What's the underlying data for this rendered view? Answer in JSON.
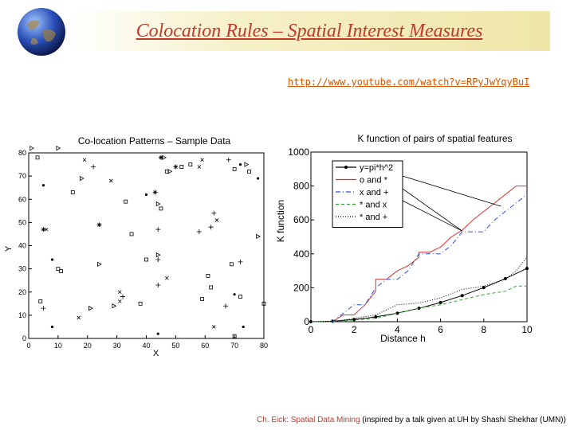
{
  "slide": {
    "title": "Colocation Rules – Spatial Interest Measures",
    "url": "http://www.youtube.com/watch?v=RPyJwYqyBuI",
    "footer_highlight": "Ch. Eick: Spatial Data Mining",
    "footer_rest": " (inspired by a talk given at UH by Shashi Shekhar (UMN))",
    "colors": {
      "title": "#c0392b",
      "url": "#d35400",
      "band": "#efe6a8"
    },
    "icon": "globe-icon"
  },
  "chart_data": [
    {
      "type": "scatter",
      "title": "Co-location Patterns – Sample Data",
      "xlabel": "X",
      "ylabel": "Y",
      "xlim": [
        0,
        80
      ],
      "ylim": [
        0,
        80
      ],
      "xticks": [
        0,
        10,
        20,
        30,
        40,
        50,
        60,
        70,
        80
      ],
      "yticks": [
        0,
        10,
        20,
        30,
        40,
        50,
        60,
        70,
        80
      ],
      "points": [
        {
          "x": 1,
          "y": 82,
          "m": "tri"
        },
        {
          "x": 3,
          "y": 78,
          "m": "sq"
        },
        {
          "x": 10,
          "y": 82,
          "m": "tri"
        },
        {
          "x": 19,
          "y": 77,
          "m": "x"
        },
        {
          "x": 22,
          "y": 74,
          "m": "plus"
        },
        {
          "x": 18,
          "y": 69,
          "m": "tri"
        },
        {
          "x": 28,
          "y": 68,
          "m": "x"
        },
        {
          "x": 5,
          "y": 66,
          "m": "dot"
        },
        {
          "x": 15,
          "y": 63,
          "m": "sq"
        },
        {
          "x": 33,
          "y": 59,
          "m": "sq"
        },
        {
          "x": 40,
          "y": 62,
          "m": "dot"
        },
        {
          "x": 43,
          "y": 63,
          "m": "star"
        },
        {
          "x": 44,
          "y": 58,
          "m": "tri"
        },
        {
          "x": 45,
          "y": 56,
          "m": "sq"
        },
        {
          "x": 45,
          "y": 78,
          "m": "star"
        },
        {
          "x": 46,
          "y": 78,
          "m": "tri"
        },
        {
          "x": 47,
          "y": 72,
          "m": "sq"
        },
        {
          "x": 48,
          "y": 72,
          "m": "tri"
        },
        {
          "x": 50,
          "y": 74,
          "m": "star"
        },
        {
          "x": 52,
          "y": 74,
          "m": "sq"
        },
        {
          "x": 55,
          "y": 75,
          "m": "sq"
        },
        {
          "x": 58,
          "y": 74,
          "m": "x"
        },
        {
          "x": 59,
          "y": 77,
          "m": "x"
        },
        {
          "x": 68,
          "y": 77,
          "m": "plus"
        },
        {
          "x": 72,
          "y": 75,
          "m": "dot"
        },
        {
          "x": 74,
          "y": 75,
          "m": "tri"
        },
        {
          "x": 75,
          "y": 72,
          "m": "sq"
        },
        {
          "x": 70,
          "y": 73,
          "m": "sq"
        },
        {
          "x": 78,
          "y": 69,
          "m": "dot"
        },
        {
          "x": 63,
          "y": 54,
          "m": "plus"
        },
        {
          "x": 64,
          "y": 51,
          "m": "x"
        },
        {
          "x": 62,
          "y": 48,
          "m": "plus"
        },
        {
          "x": 58,
          "y": 46,
          "m": "plus"
        },
        {
          "x": 6,
          "y": 47,
          "m": "x"
        },
        {
          "x": 5,
          "y": 47,
          "m": "star"
        },
        {
          "x": 24,
          "y": 49,
          "m": "star"
        },
        {
          "x": 35,
          "y": 45,
          "m": "sq"
        },
        {
          "x": 44,
          "y": 47,
          "m": "plus"
        },
        {
          "x": 78,
          "y": 44,
          "m": "tri"
        },
        {
          "x": 8,
          "y": 34,
          "m": "dot"
        },
        {
          "x": 10,
          "y": 30,
          "m": "sq"
        },
        {
          "x": 11,
          "y": 29,
          "m": "sq"
        },
        {
          "x": 24,
          "y": 32,
          "m": "tri"
        },
        {
          "x": 40,
          "y": 34,
          "m": "sq"
        },
        {
          "x": 44,
          "y": 36,
          "m": "tri"
        },
        {
          "x": 44,
          "y": 34,
          "m": "plus"
        },
        {
          "x": 47,
          "y": 26,
          "m": "x"
        },
        {
          "x": 44,
          "y": 23,
          "m": "plus"
        },
        {
          "x": 61,
          "y": 27,
          "m": "sq"
        },
        {
          "x": 69,
          "y": 32,
          "m": "sq"
        },
        {
          "x": 72,
          "y": 33,
          "m": "plus"
        },
        {
          "x": 62,
          "y": 22,
          "m": "sq"
        },
        {
          "x": 59,
          "y": 17,
          "m": "sq"
        },
        {
          "x": 70,
          "y": 19,
          "m": "dot"
        },
        {
          "x": 72,
          "y": 18,
          "m": "sq"
        },
        {
          "x": 67,
          "y": 14,
          "m": "plus"
        },
        {
          "x": 80,
          "y": 15,
          "m": "sq"
        },
        {
          "x": 4,
          "y": 16,
          "m": "sq"
        },
        {
          "x": 5,
          "y": 13,
          "m": "plus"
        },
        {
          "x": 8,
          "y": 5,
          "m": "dot"
        },
        {
          "x": 17,
          "y": 9,
          "m": "x"
        },
        {
          "x": 21,
          "y": 13,
          "m": "tri"
        },
        {
          "x": 31,
          "y": 16,
          "m": "x"
        },
        {
          "x": 32,
          "y": 18,
          "m": "plus"
        },
        {
          "x": 29,
          "y": 14,
          "m": "tri"
        },
        {
          "x": 38,
          "y": 15,
          "m": "sq"
        },
        {
          "x": 31,
          "y": 20,
          "m": "x"
        },
        {
          "x": 63,
          "y": 5,
          "m": "x"
        },
        {
          "x": 70,
          "y": 1,
          "m": "sq"
        },
        {
          "x": 73,
          "y": 5,
          "m": "dot"
        },
        {
          "x": 44,
          "y": 2,
          "m": "dot"
        }
      ]
    },
    {
      "type": "line",
      "title": "K function of pairs of spatial features",
      "xlabel": "Distance h",
      "ylabel": "K function",
      "xlim": [
        0,
        10
      ],
      "ylim": [
        0,
        1000
      ],
      "xticks": [
        0,
        2,
        4,
        6,
        8,
        10
      ],
      "yticks": [
        0,
        200,
        400,
        600,
        800,
        1000
      ],
      "legend_position": "top-left",
      "series": [
        {
          "name": "y=pi*h^2",
          "color": "#000000",
          "dash": "",
          "marker": true,
          "x": [
            0,
            1,
            2,
            3,
            4,
            5,
            6,
            7,
            8,
            9,
            10
          ],
          "y": [
            0,
            3,
            13,
            28,
            50,
            79,
            113,
            154,
            201,
            254,
            314
          ]
        },
        {
          "name": "o and *",
          "color": "#e03030",
          "dash": "",
          "x": [
            0,
            1,
            1.5,
            2,
            2.5,
            3,
            3,
            3.5,
            4,
            4.5,
            5,
            5,
            5.5,
            6,
            6.5,
            7,
            7.5,
            8,
            8.5,
            9,
            9.5,
            10
          ],
          "y": [
            0,
            0,
            40,
            40,
            100,
            180,
            250,
            250,
            300,
            330,
            380,
            410,
            410,
            440,
            500,
            540,
            600,
            650,
            700,
            750,
            800,
            800
          ]
        },
        {
          "name": "x and +",
          "color": "#3050d0",
          "dash": "6,3,1,3",
          "x": [
            0,
            1,
            2,
            2.5,
            3,
            3.5,
            4,
            4.5,
            5,
            6,
            6.5,
            7,
            7.5,
            8,
            8.5,
            9,
            9.5,
            10
          ],
          "y": [
            0,
            0,
            100,
            100,
            200,
            250,
            250,
            300,
            400,
            400,
            450,
            530,
            530,
            530,
            600,
            650,
            700,
            750
          ]
        },
        {
          "name": "* and x",
          "color": "#30a030",
          "dash": "4,3",
          "x": [
            0,
            1,
            2,
            3,
            4,
            5,
            6,
            7,
            8,
            9,
            9.5,
            10
          ],
          "y": [
            0,
            0,
            10,
            20,
            50,
            80,
            100,
            130,
            160,
            180,
            210,
            210
          ]
        },
        {
          "name": "* and +",
          "color": "#000000",
          "dash": "1,2",
          "x": [
            0,
            1,
            2,
            3,
            4,
            5,
            6,
            7,
            8,
            9,
            9.5,
            10
          ],
          "y": [
            0,
            0,
            20,
            40,
            100,
            110,
            140,
            190,
            210,
            250,
            300,
            380
          ]
        }
      ]
    }
  ]
}
